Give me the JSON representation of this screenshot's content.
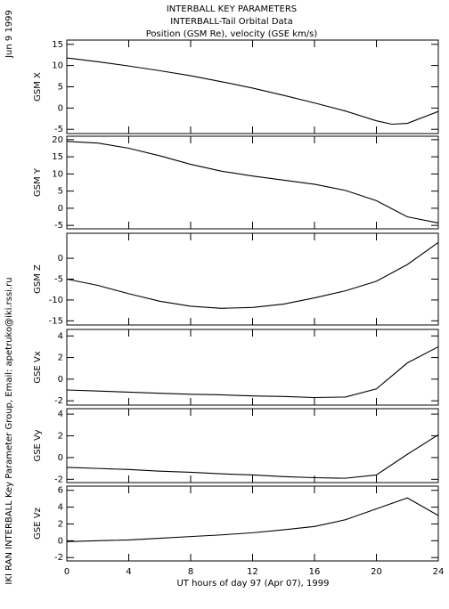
{
  "page": {
    "title_lines": [
      "INTERBALL KEY PARAMETERS",
      "INTERBALL-Tail Orbital Data",
      "Position (GSM Re), velocity (GSE km/s)"
    ],
    "date": "Jun  9 1999",
    "credit": "IKI RAN INTERBALL Key Parameter Group, Email: apetruko@iki.rssi.ru",
    "xlabel": "UT hours of day  97 (Apr 07), 1999"
  },
  "chart_data": [
    {
      "type": "line",
      "ylabel": "GSM X",
      "color": "#000000",
      "x": [
        0,
        2,
        4,
        6,
        8,
        10,
        12,
        14,
        16,
        18,
        20,
        21,
        22,
        24
      ],
      "values": [
        11.8,
        10.9,
        9.9,
        8.8,
        7.6,
        6.2,
        4.7,
        3.0,
        1.2,
        -0.7,
        -3.0,
        -3.8,
        -3.6,
        -0.8
      ],
      "xlim": [
        0,
        24
      ],
      "xticks": [
        0,
        4,
        8,
        12,
        16,
        20,
        24
      ],
      "ylim": [
        -6,
        16
      ],
      "yticks": [
        -5,
        0,
        5,
        10,
        15
      ]
    },
    {
      "type": "line",
      "ylabel": "GSM Y",
      "color": "#000000",
      "x": [
        0,
        2,
        4,
        6,
        8,
        10,
        12,
        14,
        16,
        18,
        20,
        22,
        24
      ],
      "values": [
        19.5,
        19.0,
        17.5,
        15.3,
        12.8,
        10.8,
        9.4,
        8.2,
        7.0,
        5.2,
        2.2,
        -2.5,
        -4.3
      ],
      "xlim": [
        0,
        24
      ],
      "xticks": [
        0,
        4,
        8,
        12,
        16,
        20,
        24
      ],
      "ylim": [
        -6,
        21
      ],
      "yticks": [
        -5,
        0,
        5,
        10,
        15,
        20
      ]
    },
    {
      "type": "line",
      "ylabel": "GSM Z",
      "color": "#000000",
      "x": [
        0,
        2,
        4,
        6,
        8,
        10,
        12,
        14,
        16,
        18,
        20,
        22,
        24
      ],
      "values": [
        -5,
        -6.5,
        -8.5,
        -10.3,
        -11.5,
        -12,
        -11.8,
        -11,
        -9.5,
        -7.8,
        -5.5,
        -1.5,
        3.8
      ],
      "xlim": [
        0,
        24
      ],
      "xticks": [
        0,
        4,
        8,
        12,
        16,
        20,
        24
      ],
      "ylim": [
        -16,
        6
      ],
      "yticks": [
        -15,
        -10,
        -5,
        0
      ]
    },
    {
      "type": "line",
      "ylabel": "GSE Vx",
      "color": "#000000",
      "x": [
        0,
        2,
        4,
        6,
        8,
        10,
        12,
        14,
        16,
        18,
        20,
        22,
        24
      ],
      "values": [
        -1.0,
        -1.1,
        -1.2,
        -1.3,
        -1.4,
        -1.45,
        -1.55,
        -1.6,
        -1.7,
        -1.65,
        -0.9,
        1.5,
        3.0
      ],
      "xlim": [
        0,
        24
      ],
      "xticks": [
        0,
        4,
        8,
        12,
        16,
        20,
        24
      ],
      "ylim": [
        -2.4,
        4.6
      ],
      "yticks": [
        -2,
        0,
        2,
        4
      ]
    },
    {
      "type": "line",
      "ylabel": "GSE Vy",
      "color": "#000000",
      "x": [
        0,
        2,
        4,
        6,
        8,
        10,
        12,
        14,
        16,
        18,
        20,
        22,
        24
      ],
      "values": [
        -0.9,
        -1.0,
        -1.1,
        -1.25,
        -1.35,
        -1.5,
        -1.6,
        -1.75,
        -1.85,
        -1.9,
        -1.6,
        0.3,
        2.1
      ],
      "xlim": [
        0,
        24
      ],
      "xticks": [
        0,
        4,
        8,
        12,
        16,
        20,
        24
      ],
      "ylim": [
        -2.3,
        4.5
      ],
      "yticks": [
        -2,
        0,
        2,
        4
      ]
    },
    {
      "type": "line",
      "ylabel": "GSE Vz",
      "color": "#000000",
      "x": [
        0,
        2,
        4,
        6,
        8,
        10,
        12,
        14,
        16,
        18,
        20,
        22,
        24
      ],
      "values": [
        -0.1,
        0,
        0.1,
        0.3,
        0.5,
        0.7,
        0.95,
        1.3,
        1.7,
        2.5,
        3.8,
        5.1,
        3.0
      ],
      "xlim": [
        0,
        24
      ],
      "xticks": [
        0,
        4,
        8,
        12,
        16,
        20,
        24
      ],
      "ylim": [
        -2.4,
        6.5
      ],
      "yticks": [
        -2,
        0,
        2,
        4,
        6
      ]
    }
  ]
}
